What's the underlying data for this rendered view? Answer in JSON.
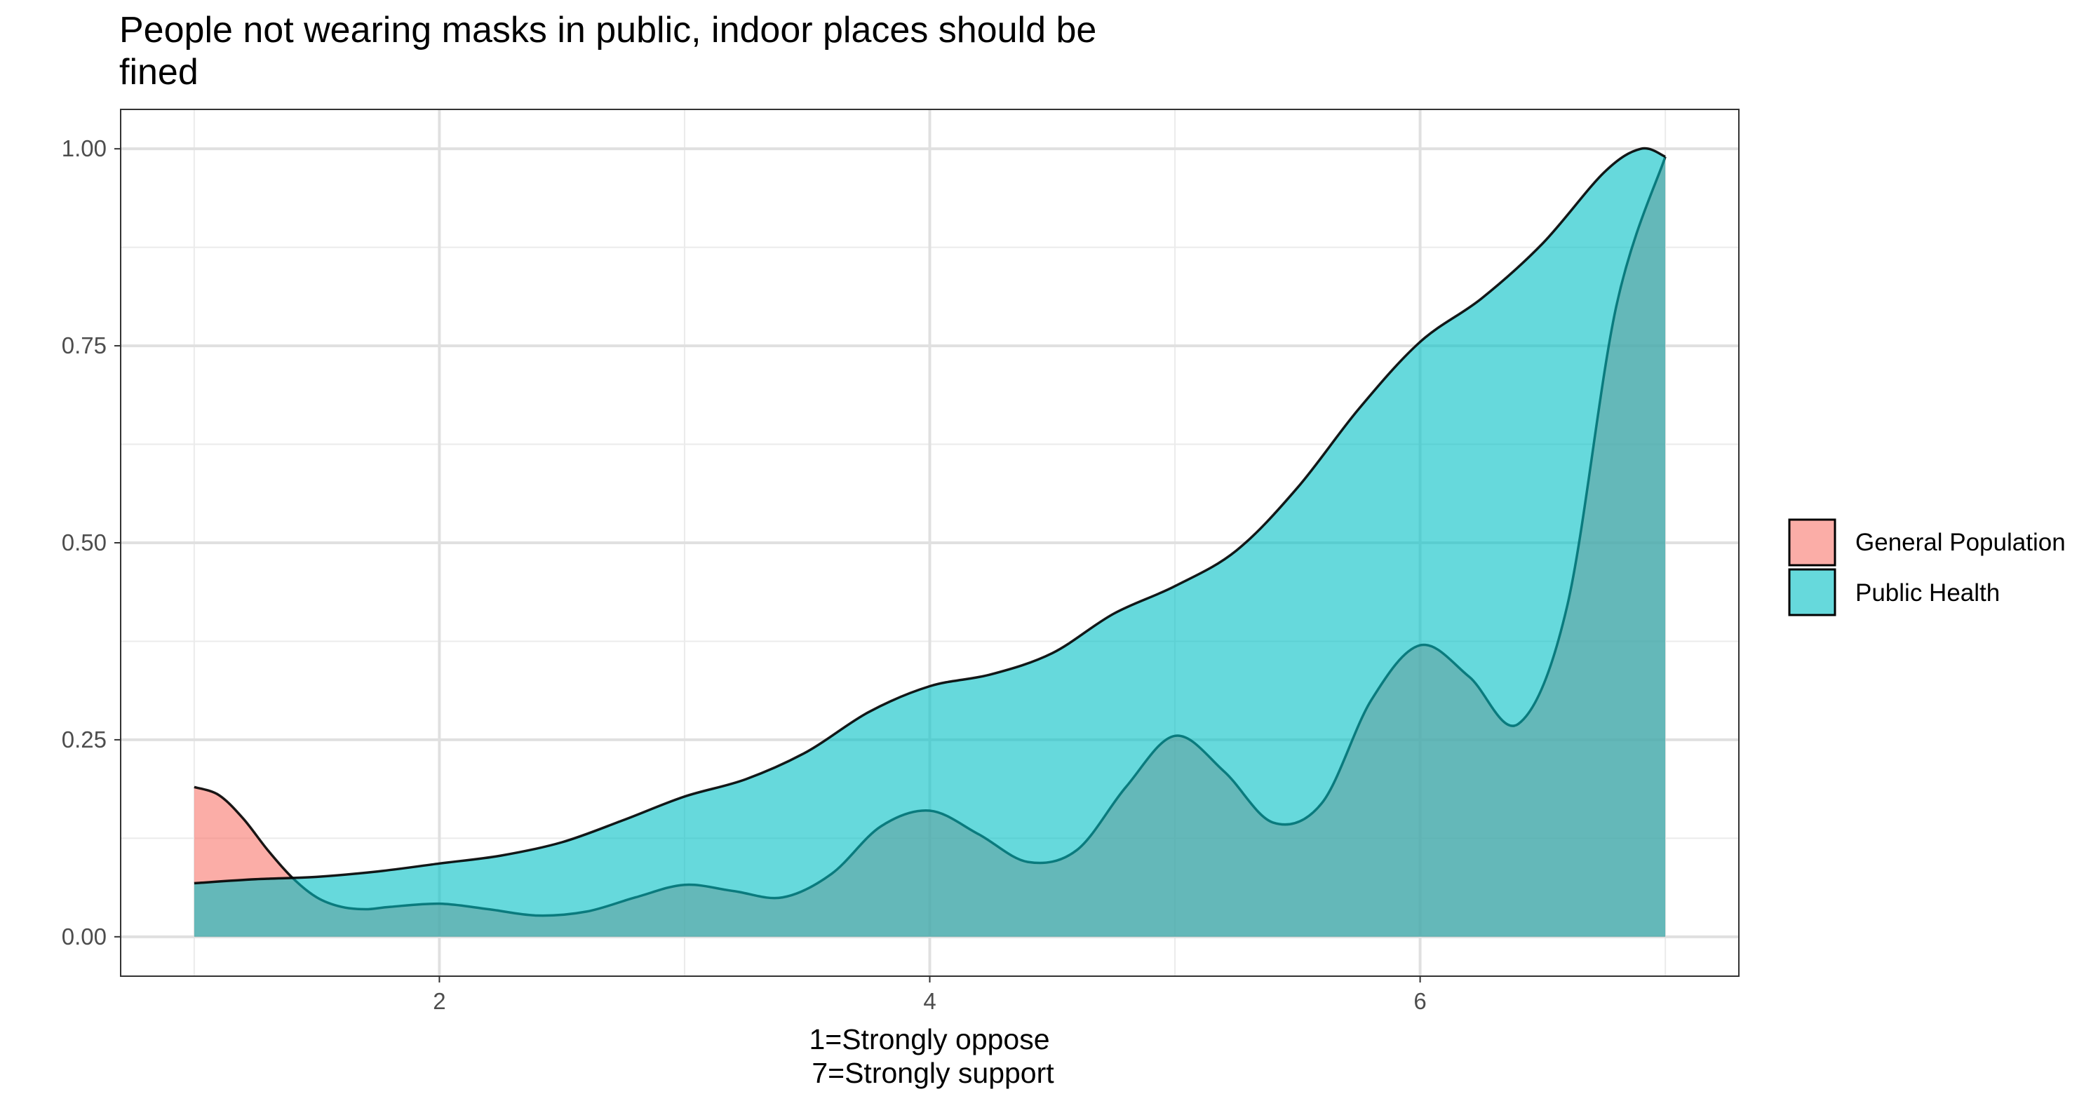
{
  "chart_data": {
    "type": "area",
    "title": [
      "People not wearing masks in public, indoor places should be",
      "fined"
    ],
    "xlabel": [
      "1=Strongly oppose",
      "7=Strongly support"
    ],
    "ylabel": "",
    "xlim": [
      0.7,
      7.3
    ],
    "ylim": [
      -0.05,
      1.05
    ],
    "x_ticks": [
      2,
      4,
      6
    ],
    "x_tick_labels": [
      "2",
      "4",
      "6"
    ],
    "y_ticks": [
      0,
      0.25,
      0.5,
      0.75,
      1.0
    ],
    "y_tick_labels": [
      "0.00",
      "0.25",
      "0.50",
      "0.75",
      "1.00"
    ],
    "grid": true,
    "legend_position": "right",
    "series": [
      {
        "name": "General Population",
        "color": "#F8766D",
        "x": [
          1.0,
          1.1,
          1.2,
          1.3,
          1.4,
          1.5,
          1.6,
          1.7,
          1.8,
          2.0,
          2.2,
          2.4,
          2.6,
          2.8,
          3.0,
          3.2,
          3.4,
          3.6,
          3.8,
          4.0,
          4.2,
          4.4,
          4.6,
          4.8,
          5.0,
          5.2,
          5.4,
          5.6,
          5.8,
          6.0,
          6.2,
          6.4,
          6.6,
          6.8,
          7.0
        ],
        "values": [
          0.19,
          0.18,
          0.15,
          0.11,
          0.075,
          0.05,
          0.038,
          0.035,
          0.038,
          0.042,
          0.035,
          0.027,
          0.032,
          0.05,
          0.066,
          0.058,
          0.05,
          0.08,
          0.14,
          0.16,
          0.13,
          0.095,
          0.11,
          0.19,
          0.255,
          0.21,
          0.145,
          0.17,
          0.3,
          0.37,
          0.33,
          0.27,
          0.42,
          0.8,
          0.99
        ]
      },
      {
        "name": "Public Health",
        "color": "#00BFC4",
        "x": [
          1.0,
          1.25,
          1.5,
          1.75,
          2.0,
          2.25,
          2.5,
          2.75,
          3.0,
          3.25,
          3.5,
          3.75,
          4.0,
          4.25,
          4.5,
          4.75,
          5.0,
          5.25,
          5.5,
          5.75,
          6.0,
          6.25,
          6.5,
          6.75,
          6.9,
          7.0
        ],
        "values": [
          0.068,
          0.073,
          0.076,
          0.083,
          0.093,
          0.103,
          0.12,
          0.148,
          0.178,
          0.2,
          0.235,
          0.285,
          0.318,
          0.333,
          0.36,
          0.41,
          0.445,
          0.49,
          0.57,
          0.67,
          0.755,
          0.81,
          0.88,
          0.97,
          1.0,
          0.99
        ]
      }
    ]
  }
}
